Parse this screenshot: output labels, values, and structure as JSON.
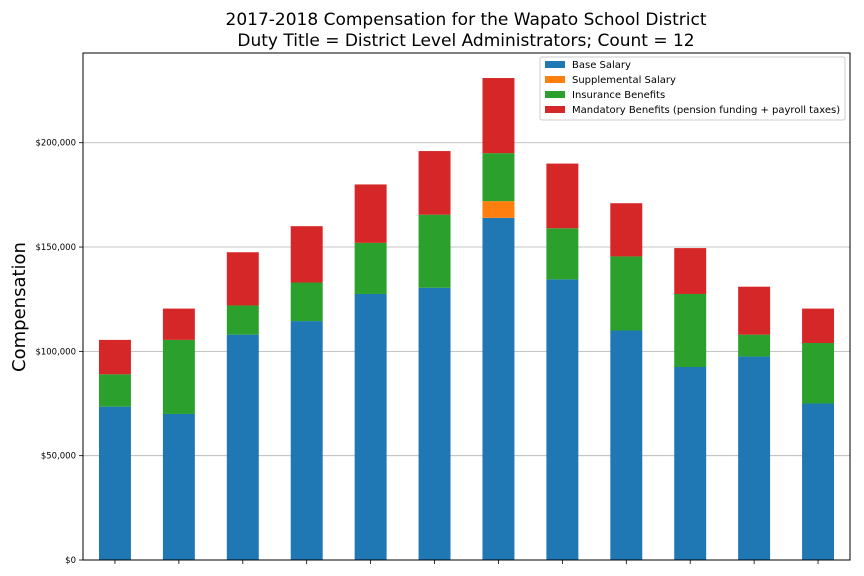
{
  "chart_data": {
    "type": "bar",
    "stacked": true,
    "title": "2017-2018 Compensation for the Wapato School District",
    "subtitle": "Duty Title = District Level Administrators; Count = 12",
    "xlabel": "",
    "ylabel": "Compensation",
    "ylim": [
      0,
      243000
    ],
    "yticks": [
      0,
      50000,
      100000,
      150000,
      200000
    ],
    "ytick_labels": [
      "$0",
      "$50,000",
      "$100,000",
      "$150,000",
      "$200,000"
    ],
    "grid": "y",
    "legend": "top-right",
    "categories": [
      "",
      "",
      "",
      "",
      "",
      "",
      "",
      "",
      "",
      "",
      "",
      ""
    ],
    "series": [
      {
        "name": "Base Salary",
        "color": "#1f77b4",
        "values": [
          73500,
          70000,
          108000,
          114500,
          127500,
          130500,
          164000,
          134500,
          110000,
          92500,
          97500,
          75000
        ]
      },
      {
        "name": "Supplemental Salary",
        "color": "#ff7f0e",
        "values": [
          0,
          0,
          0,
          0,
          0,
          0,
          8000,
          0,
          0,
          0,
          0,
          0
        ]
      },
      {
        "name": "Insurance Benefits",
        "color": "#2ca02c",
        "values": [
          15500,
          35500,
          14000,
          18500,
          24500,
          35000,
          23000,
          24500,
          35500,
          35000,
          10500,
          29000
        ]
      },
      {
        "name": "Mandatory Benefits (pension funding + payroll taxes)",
        "color": "#d62728",
        "values": [
          16500,
          15000,
          25500,
          27000,
          28000,
          30500,
          36000,
          31000,
          25500,
          22000,
          23000,
          16500
        ]
      }
    ]
  }
}
